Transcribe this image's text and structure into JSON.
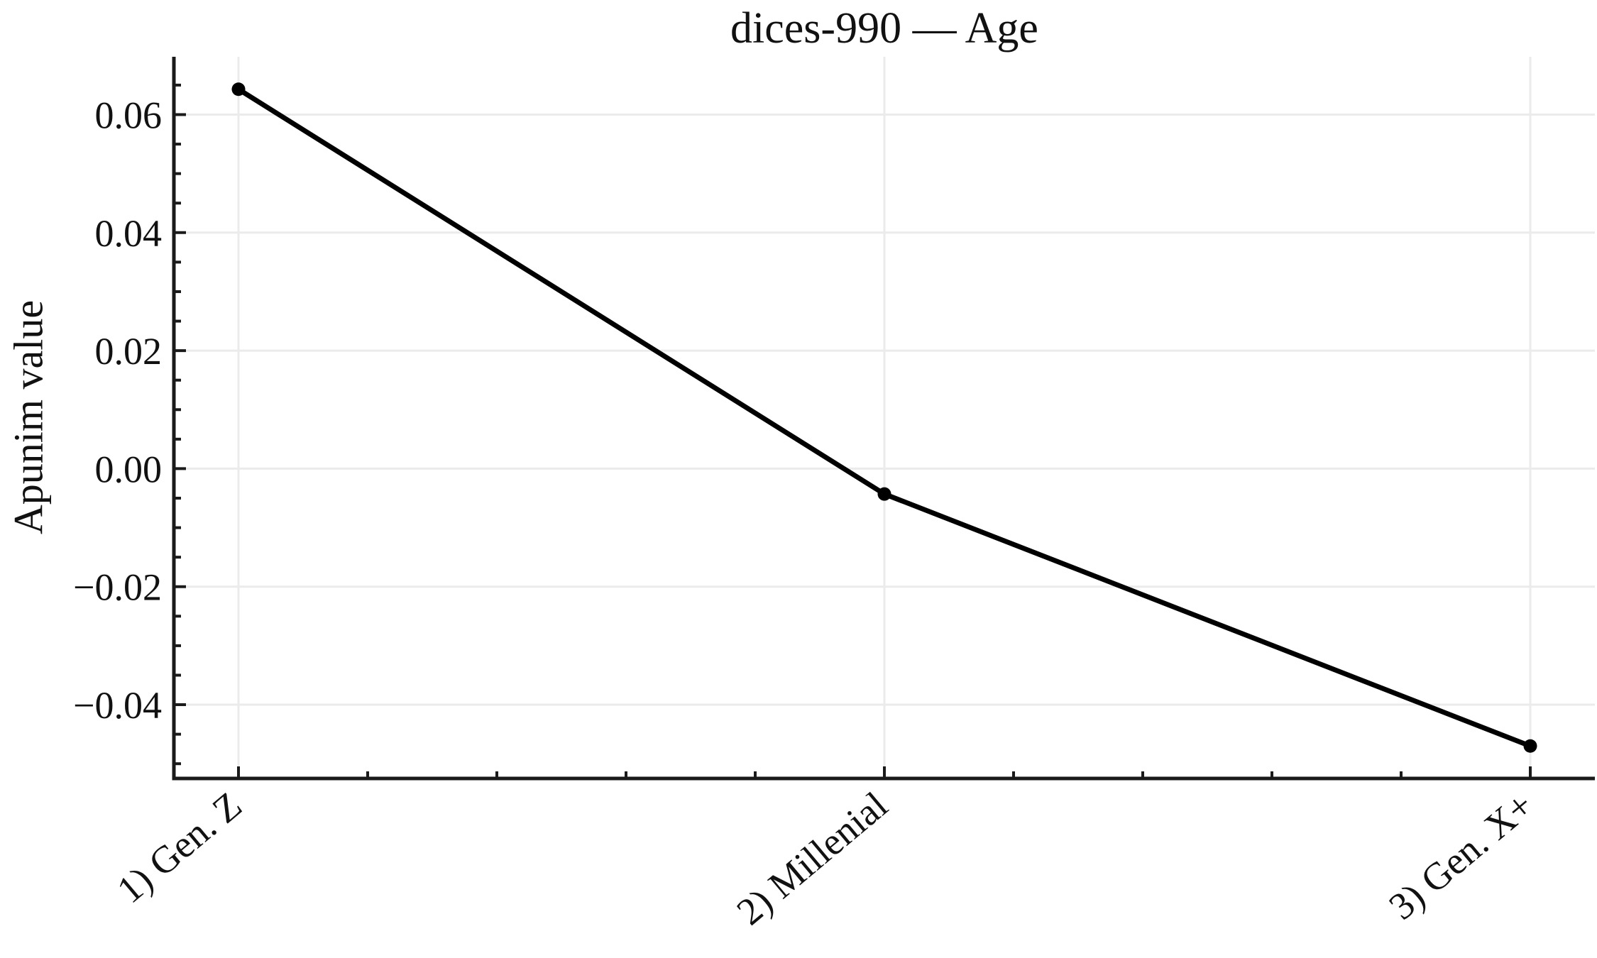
{
  "chart_data": {
    "type": "line",
    "title": "dices-990 — Age",
    "xlabel": "",
    "ylabel": "Apunim value",
    "categories": [
      "1) Gen. Z",
      "2) Millenial",
      "3) Gen. X+"
    ],
    "x": [
      1,
      2,
      3
    ],
    "series": [
      {
        "name": "Age",
        "values": [
          0.0643,
          -0.0043,
          -0.047
        ]
      }
    ],
    "xlim": [
      0.9,
      3.1
    ],
    "ylim": [
      -0.0525,
      0.0698
    ],
    "yticks": [
      0.06,
      0.04,
      0.02,
      0.0,
      -0.02,
      -0.04
    ],
    "ytick_labels": [
      "0.06",
      "0.04",
      "0.02",
      "0.00",
      "−0.02",
      "−0.04"
    ],
    "minor_y_step": 0.005,
    "minor_x_step": 0.2,
    "grid": true,
    "legend": "none",
    "x_label_rotation_deg": -40,
    "colors": {
      "line": "#000000",
      "marker": "#000000",
      "axis": "#1a1a1a",
      "grid": "#ebebeb",
      "text": "#111111",
      "background": "#ffffff"
    }
  }
}
